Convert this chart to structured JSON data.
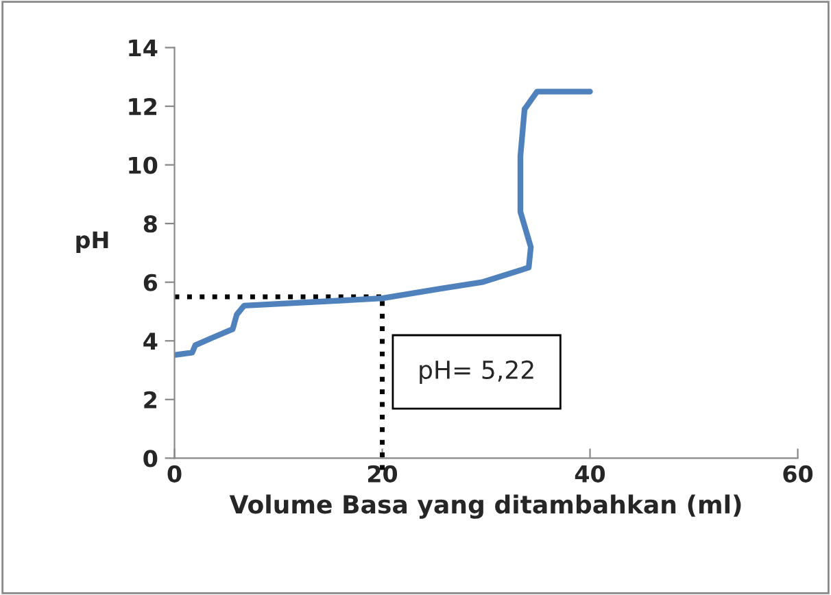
{
  "chart_data": {
    "type": "line",
    "xlabel": "Volume Basa yang ditambahkan (ml)",
    "ylabel": "pH",
    "series": [
      {
        "color": "#4f81bd",
        "x": [
          0,
          1.7,
          2.0,
          3.6,
          5.6,
          6.0,
          6.7,
          20,
          25.6,
          29.6,
          34.1,
          34.3,
          33.3,
          33.3,
          33.7,
          34.9,
          40
        ],
        "values": [
          3.52,
          3.6,
          3.85,
          4.1,
          4.4,
          4.9,
          5.2,
          5.45,
          5.78,
          6.0,
          6.5,
          7.2,
          8.4,
          10.3,
          11.9,
          12.5,
          12.5
        ]
      }
    ],
    "xlim": [
      0,
      60
    ],
    "xticks": [
      0,
      20,
      40,
      60
    ],
    "ylim": [
      0,
      14
    ],
    "yticks": [
      0,
      2,
      4,
      6,
      8,
      10,
      12,
      14
    ],
    "ref_lines": [
      {
        "axis": "y",
        "value": 5.5,
        "color": "#000000",
        "line_style": "dotted"
      },
      {
        "axis": "x",
        "value": 20,
        "color": "#000000",
        "line_style": "dotted"
      }
    ],
    "annotations": [
      "pH= 5,22"
    ],
    "grid": false,
    "legend": false,
    "marker": "none",
    "line_style": "solid"
  }
}
